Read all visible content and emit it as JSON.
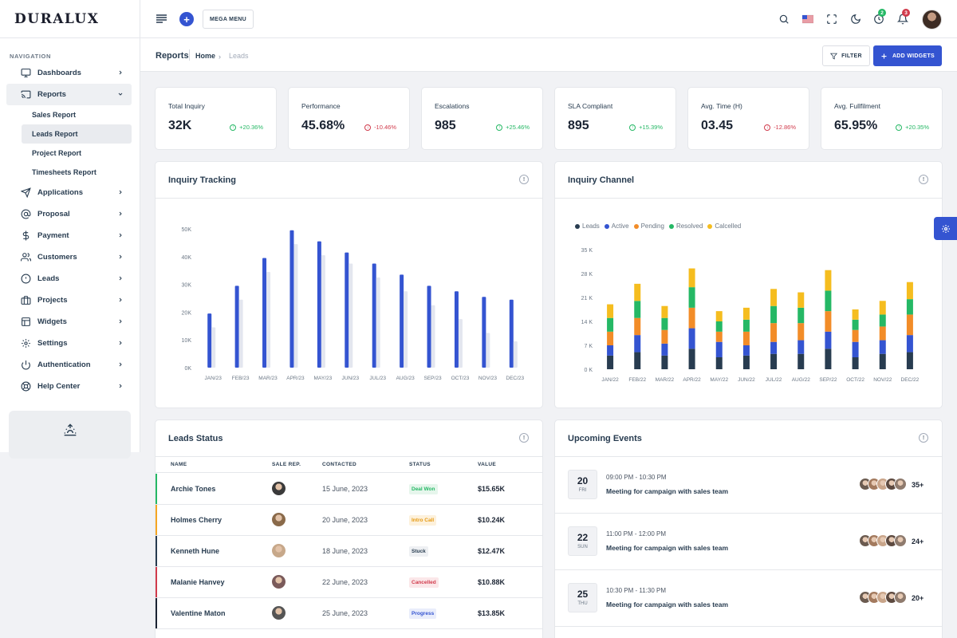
{
  "brand": {
    "name": "DURALUX"
  },
  "nav": {
    "caption": "NAVIGATION",
    "items": [
      {
        "label": "Dashboards",
        "icon": "monitor-icon"
      },
      {
        "label": "Reports",
        "icon": "cast-icon"
      },
      {
        "label": "Applications",
        "icon": "send-icon"
      },
      {
        "label": "Proposal",
        "icon": "at-sign-icon"
      },
      {
        "label": "Payment",
        "icon": "dollar-icon"
      },
      {
        "label": "Customers",
        "icon": "users-icon"
      },
      {
        "label": "Leads",
        "icon": "alert-circle-icon"
      },
      {
        "label": "Projects",
        "icon": "briefcase-icon"
      },
      {
        "label": "Widgets",
        "icon": "layout-icon"
      },
      {
        "label": "Settings",
        "icon": "settings-icon"
      },
      {
        "label": "Authentication",
        "icon": "power-icon"
      },
      {
        "label": "Help Center",
        "icon": "life-buoy-icon"
      }
    ],
    "reports_sub": [
      "Sales Report",
      "Leads Report",
      "Project Report",
      "Timesheets Report"
    ]
  },
  "header": {
    "mega_menu": "MEGA MENU",
    "timer_badge": "2",
    "bell_badge": "3",
    "colors": {
      "primary": "#3454d1",
      "success": "#25b865",
      "danger": "#d13b4c"
    }
  },
  "subheader": {
    "title": "Reports",
    "crumb_home": "Home",
    "crumb_current": "Leads",
    "filter": "FILTER",
    "add_widgets": "ADD WIDGETS"
  },
  "stats": [
    {
      "label": "Total Inquiry",
      "value": "32K",
      "delta": "+20.36%",
      "trend": "up"
    },
    {
      "label": "Performance",
      "value": "45.68%",
      "delta": "-10.46%",
      "trend": "down"
    },
    {
      "label": "Escalations",
      "value": "985",
      "delta": "+25.46%",
      "trend": "up"
    },
    {
      "label": "SLA Compliant",
      "value": "895",
      "delta": "+15.39%",
      "trend": "up"
    },
    {
      "label": "Avg. Time (H)",
      "value": "03.45",
      "delta": "-12.86%",
      "trend": "down"
    },
    {
      "label": "Avg. Fullfilment",
      "value": "65.95%",
      "delta": "+20.35%",
      "trend": "up"
    }
  ],
  "panels": {
    "inquiry_tracking": "Inquiry Tracking",
    "inquiry_channel": "Inquiry Channel",
    "leads_status": "Leads Status",
    "upcoming_events": "Upcoming Events"
  },
  "chart_data": [
    {
      "type": "bar",
      "title": "Inquiry Tracking",
      "categories": [
        "JAN/23",
        "FEB/23",
        "MAR/23",
        "APR/23",
        "MAY/23",
        "JUN/23",
        "JUL/23",
        "AUG/23",
        "SEP/23",
        "OCT/23",
        "NOV/23",
        "DEC/23"
      ],
      "yticks": [
        "0K",
        "10K",
        "20K",
        "30K",
        "40K",
        "50K"
      ],
      "ylim": [
        0,
        50000
      ],
      "series": [
        {
          "values": [
            19500,
            29500,
            39500,
            49500,
            45500,
            41500,
            37500,
            33500,
            29500,
            27500,
            25500,
            24500
          ],
          "color": "#3454d1"
        },
        {
          "values": [
            14500,
            24500,
            34500,
            44500,
            40500,
            37500,
            32500,
            27500,
            22500,
            17500,
            12500,
            9500
          ],
          "color": "#e3e6ef"
        }
      ],
      "grid": false
    },
    {
      "type": "bar",
      "stacked": true,
      "title": "Inquiry Channel",
      "categories": [
        "JAN/22",
        "FEB/22",
        "MAR/22",
        "APR/22",
        "MAY/22",
        "JUN/22",
        "JUL/22",
        "AUG/22",
        "SEP/22",
        "OCT/22",
        "NOV/22",
        "DEC/22"
      ],
      "yticks": [
        "0 K",
        "7 K",
        "14 K",
        "21 K",
        "28 K",
        "35 K"
      ],
      "ylim": [
        0,
        35000
      ],
      "legend_position": "top-left",
      "series": [
        {
          "name": "Leads",
          "color": "#283c50",
          "values": [
            4000,
            5000,
            4000,
            6000,
            3500,
            4000,
            4500,
            4500,
            6000,
            3500,
            4500,
            5000
          ]
        },
        {
          "name": "Active",
          "color": "#3454d1",
          "values": [
            3000,
            5000,
            3500,
            6000,
            4500,
            3000,
            3500,
            4000,
            5000,
            4500,
            4000,
            5000
          ]
        },
        {
          "name": "Pending",
          "color": "#f28c28",
          "values": [
            4000,
            5000,
            4000,
            6000,
            3000,
            4000,
            5500,
            5000,
            6000,
            3500,
            4000,
            6000
          ]
        },
        {
          "name": "Resolved",
          "color": "#25b865",
          "values": [
            4000,
            5000,
            3500,
            6000,
            3000,
            3500,
            5000,
            4500,
            6000,
            3000,
            3500,
            4500
          ]
        },
        {
          "name": "Calcelled",
          "color": "#f5bd1f",
          "values": [
            4000,
            5000,
            3500,
            5500,
            3000,
            3500,
            5000,
            4500,
            6000,
            3000,
            4000,
            5000
          ]
        }
      ]
    }
  ],
  "leads_table": {
    "columns": [
      "NAME",
      "SALE REP.",
      "CONTACTED",
      "STATUS",
      "VALUE"
    ],
    "rows": [
      {
        "name": "Archie Tones",
        "contacted": "15 June, 2023",
        "status": "Deal Won",
        "value": "$15.65K",
        "accent": "#25b865",
        "status_bg": "#e6f6ec",
        "status_fg": "#25b865"
      },
      {
        "name": "Holmes Cherry",
        "contacted": "20 June, 2023",
        "status": "Intro Call",
        "value": "$10.24K",
        "accent": "#f5a623",
        "status_bg": "#fdf1dc",
        "status_fg": "#e69a12"
      },
      {
        "name": "Kenneth Hune",
        "contacted": "18 June, 2023",
        "status": "Stuck",
        "value": "$12.47K",
        "accent": "#283c50",
        "status_bg": "#eef0f3",
        "status_fg": "#283c50"
      },
      {
        "name": "Malanie Hanvey",
        "contacted": "22 June, 2023",
        "status": "Cancelled",
        "value": "$10.88K",
        "accent": "#d13b4c",
        "status_bg": "#fbe7e9",
        "status_fg": "#d13b4c"
      },
      {
        "name": "Valentine Maton",
        "contacted": "25 June, 2023",
        "status": "Progress",
        "value": "$13.85K",
        "accent": "#1b2433",
        "status_bg": "#e9edfb",
        "status_fg": "#3454d1"
      }
    ]
  },
  "events": [
    {
      "day": "20",
      "dow": "FRI",
      "time": "09:00 PM - 10:30 PM",
      "title": "Meeting for campaign with sales team",
      "count": "35+"
    },
    {
      "day": "22",
      "dow": "SUN",
      "time": "11:00 PM - 12:00 PM",
      "title": "Meeting for campaign with sales team",
      "count": "24+"
    },
    {
      "day": "25",
      "dow": "THU",
      "time": "10:30 PM - 11:30 PM",
      "title": "Meeting for campaign with sales team",
      "count": "20+"
    }
  ]
}
